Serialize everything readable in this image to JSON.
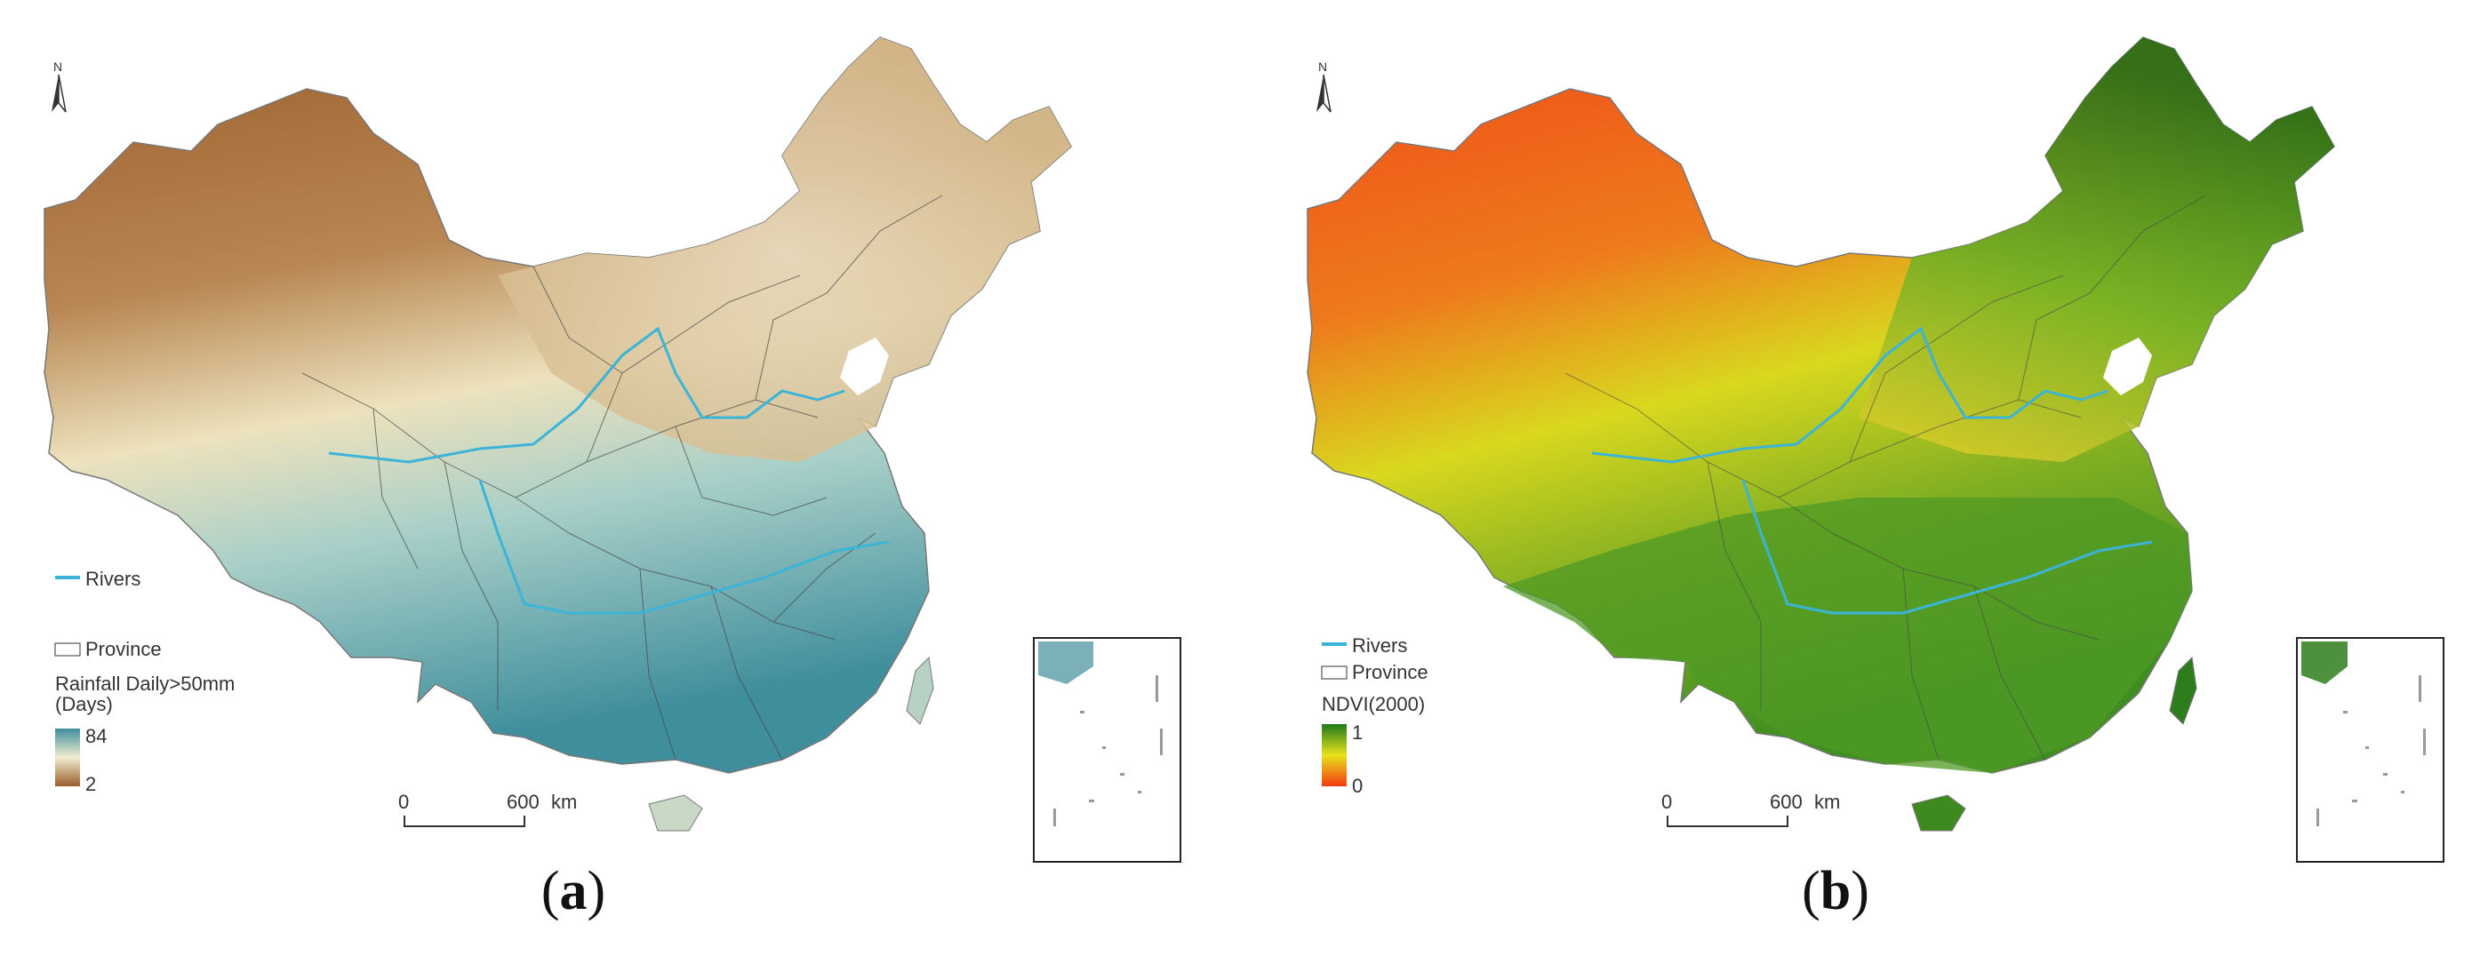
{
  "panels": [
    {
      "id": "a",
      "caption_letter": "a",
      "north": "N",
      "legend": {
        "rivers": "Rivers",
        "province": "Province",
        "variable_title_line1": "Rainfall Daily>50mm",
        "variable_title_line2": "(Days)",
        "max_label": "84",
        "min_label": "2"
      },
      "scale": {
        "zero": "0",
        "distance": "600",
        "unit": "km"
      },
      "colors": {
        "high": "#3f8e9c",
        "mid": "#f1edd0",
        "low": "#9a5d2c",
        "river": "#3cb4d8"
      }
    },
    {
      "id": "b",
      "caption_letter": "b",
      "north": "N",
      "legend": {
        "rivers": "Rivers",
        "province": "Province",
        "variable_title_line1": "NDVI(2000)",
        "max_label": "1",
        "min_label": "0"
      },
      "scale": {
        "zero": "0",
        "distance": "600",
        "unit": "km"
      },
      "colors": {
        "high": "#1f7a1a",
        "mid": "#e8e21a",
        "low": "#f23a10",
        "river": "#3cb4d8"
      }
    }
  ]
}
